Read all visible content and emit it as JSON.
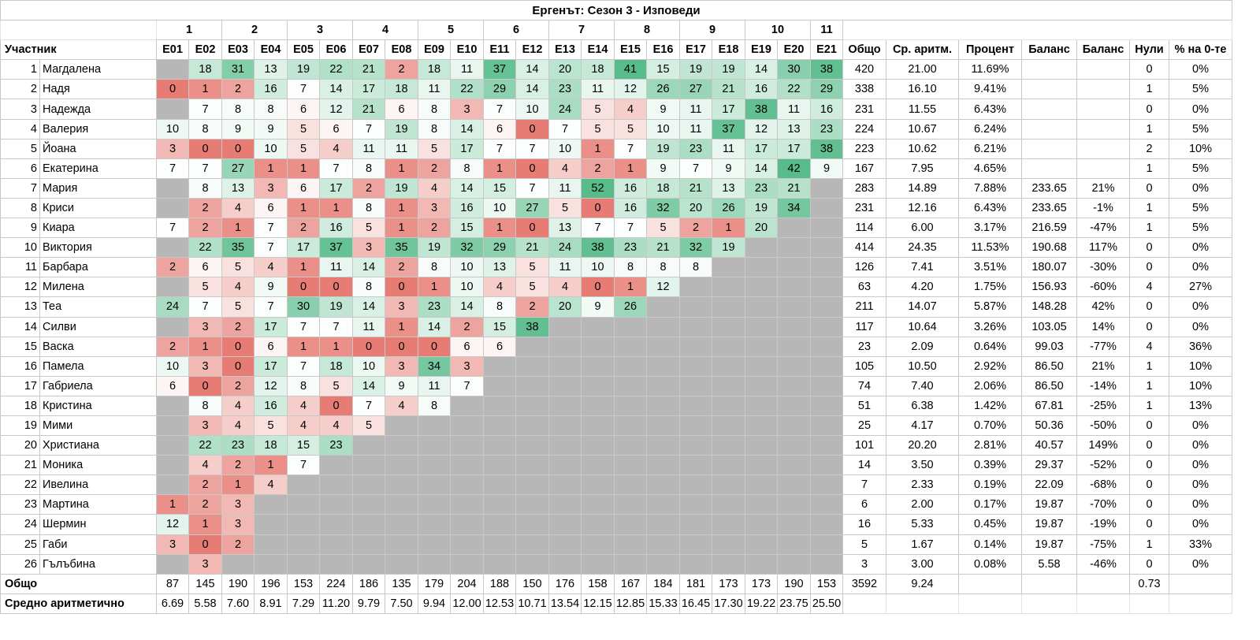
{
  "title": "Ергенът: Сезон 3 - Изповеди",
  "header": {
    "participant_label": "Участник",
    "week_labels": [
      "1",
      "2",
      "3",
      "4",
      "5",
      "6",
      "7",
      "8",
      "9",
      "10",
      "11"
    ],
    "episodes": [
      "E01",
      "E02",
      "E03",
      "E04",
      "E05",
      "E06",
      "E07",
      "E08",
      "E09",
      "E10",
      "E11",
      "E12",
      "E13",
      "E14",
      "E15",
      "E16",
      "E17",
      "E18",
      "E19",
      "E20",
      "E21"
    ],
    "stat_labels": [
      "Общо",
      "Ср. аритм.",
      "Процент",
      "Баланс",
      "Баланс",
      "Нули",
      "% на 0-те"
    ]
  },
  "colors": {
    "gray": "#b7b7b7",
    "green": "#57bb8a",
    "red": "#e67c73",
    "white": "#ffffff"
  },
  "rows": [
    {
      "num": "1",
      "name": "Магдалена",
      "ep": [
        null,
        18,
        31,
        13,
        19,
        22,
        21,
        2,
        18,
        11,
        37,
        14,
        20,
        18,
        41,
        15,
        19,
        19,
        14,
        30,
        38
      ],
      "total": "420",
      "avg": "21.00",
      "pct": "11.69%",
      "bal": "",
      "balp": "",
      "zeros": "0",
      "zpct": "0%"
    },
    {
      "num": "2",
      "name": "Надя",
      "ep": [
        0,
        1,
        2,
        16,
        7,
        14,
        17,
        18,
        11,
        22,
        29,
        14,
        23,
        11,
        12,
        26,
        27,
        21,
        16,
        22,
        29
      ],
      "total": "338",
      "avg": "16.10",
      "pct": "9.41%",
      "bal": "",
      "balp": "",
      "zeros": "1",
      "zpct": "5%"
    },
    {
      "num": "3",
      "name": "Надежда",
      "ep": [
        null,
        7,
        8,
        8,
        6,
        12,
        21,
        6,
        8,
        3,
        7,
        10,
        24,
        5,
        4,
        9,
        11,
        17,
        38,
        11,
        16
      ],
      "total": "231",
      "avg": "11.55",
      "pct": "6.43%",
      "bal": "",
      "balp": "",
      "zeros": "0",
      "zpct": "0%"
    },
    {
      "num": "4",
      "name": "Валерия",
      "ep": [
        10,
        8,
        9,
        9,
        5,
        6,
        7,
        19,
        8,
        14,
        6,
        0,
        7,
        5,
        5,
        10,
        11,
        37,
        12,
        13,
        23
      ],
      "total": "224",
      "avg": "10.67",
      "pct": "6.24%",
      "bal": "",
      "balp": "",
      "zeros": "1",
      "zpct": "5%"
    },
    {
      "num": "5",
      "name": "Йоана",
      "ep": [
        3,
        0,
        0,
        10,
        5,
        4,
        11,
        11,
        5,
        17,
        7,
        7,
        10,
        1,
        7,
        19,
        23,
        11,
        17,
        17,
        38
      ],
      "total": "223",
      "avg": "10.62",
      "pct": "6.21%",
      "bal": "",
      "balp": "",
      "zeros": "2",
      "zpct": "10%"
    },
    {
      "num": "6",
      "name": "Екатерина",
      "ep": [
        7,
        7,
        27,
        1,
        1,
        7,
        8,
        1,
        2,
        8,
        1,
        0,
        4,
        2,
        1,
        9,
        7,
        9,
        14,
        42,
        9
      ],
      "total": "167",
      "avg": "7.95",
      "pct": "4.65%",
      "bal": "",
      "balp": "",
      "zeros": "1",
      "zpct": "5%"
    },
    {
      "num": "7",
      "name": "Мария",
      "ep": [
        null,
        8,
        13,
        3,
        6,
        17,
        2,
        19,
        4,
        14,
        15,
        7,
        11,
        52,
        16,
        18,
        21,
        13,
        23,
        21,
        null
      ],
      "total": "283",
      "avg": "14.89",
      "pct": "7.88%",
      "bal": "233.65",
      "balp": "21%",
      "zeros": "0",
      "zpct": "0%"
    },
    {
      "num": "8",
      "name": "Криси",
      "ep": [
        null,
        2,
        4,
        6,
        1,
        1,
        8,
        1,
        3,
        16,
        10,
        27,
        5,
        0,
        16,
        32,
        20,
        26,
        19,
        34,
        null
      ],
      "total": "231",
      "avg": "12.16",
      "pct": "6.43%",
      "bal": "233.65",
      "balp": "-1%",
      "zeros": "1",
      "zpct": "5%"
    },
    {
      "num": "9",
      "name": "Киара",
      "ep": [
        7,
        2,
        1,
        7,
        2,
        16,
        5,
        1,
        2,
        15,
        1,
        0,
        13,
        7,
        7,
        5,
        2,
        1,
        20,
        null,
        null
      ],
      "total": "114",
      "avg": "6.00",
      "pct": "3.17%",
      "bal": "216.59",
      "balp": "-47%",
      "zeros": "1",
      "zpct": "5%"
    },
    {
      "num": "10",
      "name": "Виктория",
      "ep": [
        null,
        22,
        35,
        7,
        17,
        37,
        3,
        35,
        19,
        32,
        29,
        21,
        24,
        38,
        23,
        21,
        32,
        19,
        null,
        null,
        null
      ],
      "total": "414",
      "avg": "24.35",
      "pct": "11.53%",
      "bal": "190.68",
      "balp": "117%",
      "zeros": "0",
      "zpct": "0%"
    },
    {
      "num": "11",
      "name": "Барбара",
      "ep": [
        2,
        6,
        5,
        4,
        1,
        11,
        14,
        2,
        8,
        10,
        13,
        5,
        11,
        10,
        8,
        8,
        8,
        null,
        null,
        null,
        null
      ],
      "total": "126",
      "avg": "7.41",
      "pct": "3.51%",
      "bal": "180.07",
      "balp": "-30%",
      "zeros": "0",
      "zpct": "0%"
    },
    {
      "num": "12",
      "name": "Милена",
      "ep": [
        null,
        5,
        4,
        9,
        0,
        0,
        8,
        0,
        1,
        10,
        4,
        5,
        4,
        0,
        1,
        12,
        null,
        null,
        null,
        null,
        null
      ],
      "total": "63",
      "avg": "4.20",
      "pct": "1.75%",
      "bal": "156.93",
      "balp": "-60%",
      "zeros": "4",
      "zpct": "27%"
    },
    {
      "num": "13",
      "name": "Теа",
      "ep": [
        24,
        7,
        5,
        7,
        30,
        19,
        14,
        3,
        23,
        14,
        8,
        2,
        20,
        9,
        26,
        null,
        null,
        null,
        null,
        null,
        null
      ],
      "total": "211",
      "avg": "14.07",
      "pct": "5.87%",
      "bal": "148.28",
      "balp": "42%",
      "zeros": "0",
      "zpct": "0%"
    },
    {
      "num": "14",
      "name": "Силви",
      "ep": [
        null,
        3,
        2,
        17,
        7,
        7,
        11,
        1,
        14,
        2,
        15,
        38,
        null,
        null,
        null,
        null,
        null,
        null,
        null,
        null,
        null
      ],
      "total": "117",
      "avg": "10.64",
      "pct": "3.26%",
      "bal": "103.05",
      "balp": "14%",
      "zeros": "0",
      "zpct": "0%"
    },
    {
      "num": "15",
      "name": "Васка",
      "ep": [
        2,
        1,
        0,
        6,
        1,
        1,
        0,
        0,
        0,
        6,
        6,
        null,
        null,
        null,
        null,
        null,
        null,
        null,
        null,
        null,
        null
      ],
      "total": "23",
      "avg": "2.09",
      "pct": "0.64%",
      "bal": "99.03",
      "balp": "-77%",
      "zeros": "4",
      "zpct": "36%"
    },
    {
      "num": "16",
      "name": "Памела",
      "ep": [
        10,
        3,
        0,
        17,
        7,
        18,
        10,
        3,
        34,
        3,
        null,
        null,
        null,
        null,
        null,
        null,
        null,
        null,
        null,
        null,
        null
      ],
      "total": "105",
      "avg": "10.50",
      "pct": "2.92%",
      "bal": "86.50",
      "balp": "21%",
      "zeros": "1",
      "zpct": "10%"
    },
    {
      "num": "17",
      "name": "Габриела",
      "ep": [
        6,
        0,
        2,
        12,
        8,
        5,
        14,
        9,
        11,
        7,
        null,
        null,
        null,
        null,
        null,
        null,
        null,
        null,
        null,
        null,
        null
      ],
      "total": "74",
      "avg": "7.40",
      "pct": "2.06%",
      "bal": "86.50",
      "balp": "-14%",
      "zeros": "1",
      "zpct": "10%"
    },
    {
      "num": "18",
      "name": "Кристина",
      "ep": [
        null,
        8,
        4,
        16,
        4,
        0,
        7,
        4,
        8,
        null,
        null,
        null,
        null,
        null,
        null,
        null,
        null,
        null,
        null,
        null,
        null
      ],
      "total": "51",
      "avg": "6.38",
      "pct": "1.42%",
      "bal": "67.81",
      "balp": "-25%",
      "zeros": "1",
      "zpct": "13%"
    },
    {
      "num": "19",
      "name": "Мими",
      "ep": [
        null,
        3,
        4,
        5,
        4,
        4,
        5,
        null,
        null,
        null,
        null,
        null,
        null,
        null,
        null,
        null,
        null,
        null,
        null,
        null,
        null
      ],
      "total": "25",
      "avg": "4.17",
      "pct": "0.70%",
      "bal": "50.36",
      "balp": "-50%",
      "zeros": "0",
      "zpct": "0%"
    },
    {
      "num": "20",
      "name": "Христиана",
      "ep": [
        null,
        22,
        23,
        18,
        15,
        23,
        null,
        null,
        null,
        null,
        null,
        null,
        null,
        null,
        null,
        null,
        null,
        null,
        null,
        null,
        null
      ],
      "total": "101",
      "avg": "20.20",
      "pct": "2.81%",
      "bal": "40.57",
      "balp": "149%",
      "zeros": "0",
      "zpct": "0%"
    },
    {
      "num": "21",
      "name": "Моника",
      "ep": [
        null,
        4,
        2,
        1,
        7,
        null,
        null,
        null,
        null,
        null,
        null,
        null,
        null,
        null,
        null,
        null,
        null,
        null,
        null,
        null,
        null
      ],
      "total": "14",
      "avg": "3.50",
      "pct": "0.39%",
      "bal": "29.37",
      "balp": "-52%",
      "zeros": "0",
      "zpct": "0%"
    },
    {
      "num": "22",
      "name": "Ивелина",
      "ep": [
        null,
        2,
        1,
        4,
        null,
        null,
        null,
        null,
        null,
        null,
        null,
        null,
        null,
        null,
        null,
        null,
        null,
        null,
        null,
        null,
        null
      ],
      "total": "7",
      "avg": "2.33",
      "pct": "0.19%",
      "bal": "22.09",
      "balp": "-68%",
      "zeros": "0",
      "zpct": "0%"
    },
    {
      "num": "23",
      "name": "Мартина",
      "ep": [
        1,
        2,
        3,
        null,
        null,
        null,
        null,
        null,
        null,
        null,
        null,
        null,
        null,
        null,
        null,
        null,
        null,
        null,
        null,
        null,
        null
      ],
      "total": "6",
      "avg": "2.00",
      "pct": "0.17%",
      "bal": "19.87",
      "balp": "-70%",
      "zeros": "0",
      "zpct": "0%"
    },
    {
      "num": "24",
      "name": "Шермин",
      "ep": [
        12,
        1,
        3,
        null,
        null,
        null,
        null,
        null,
        null,
        null,
        null,
        null,
        null,
        null,
        null,
        null,
        null,
        null,
        null,
        null,
        null
      ],
      "total": "16",
      "avg": "5.33",
      "pct": "0.45%",
      "bal": "19.87",
      "balp": "-19%",
      "zeros": "0",
      "zpct": "0%"
    },
    {
      "num": "25",
      "name": "Габи",
      "ep": [
        3,
        0,
        2,
        null,
        null,
        null,
        null,
        null,
        null,
        null,
        null,
        null,
        null,
        null,
        null,
        null,
        null,
        null,
        null,
        null,
        null
      ],
      "total": "5",
      "avg": "1.67",
      "pct": "0.14%",
      "bal": "19.87",
      "balp": "-75%",
      "zeros": "1",
      "zpct": "33%"
    },
    {
      "num": "26",
      "name": "Гълъбина",
      "ep": [
        null,
        3,
        null,
        null,
        null,
        null,
        null,
        null,
        null,
        null,
        null,
        null,
        null,
        null,
        null,
        null,
        null,
        null,
        null,
        null,
        null
      ],
      "total": "3",
      "avg": "3.00",
      "pct": "0.08%",
      "bal": "5.58",
      "balp": "-46%",
      "zeros": "0",
      "zpct": "0%"
    }
  ],
  "totals_row": {
    "label": "Общо",
    "values": [
      "87",
      "145",
      "190",
      "196",
      "153",
      "224",
      "186",
      "135",
      "179",
      "204",
      "188",
      "150",
      "176",
      "158",
      "167",
      "184",
      "181",
      "173",
      "173",
      "190",
      "153"
    ],
    "total": "3592",
    "avg": "9.24",
    "zeros": "0.73"
  },
  "avg_row": {
    "label": "Средно аритметично",
    "values": [
      "6.69",
      "5.58",
      "7.60",
      "8.91",
      "7.29",
      "11.20",
      "9.79",
      "7.50",
      "9.94",
      "12.00",
      "12.53",
      "10.71",
      "13.54",
      "12.15",
      "12.85",
      "15.33",
      "16.45",
      "17.30",
      "19.22",
      "23.75",
      "25.50"
    ]
  }
}
